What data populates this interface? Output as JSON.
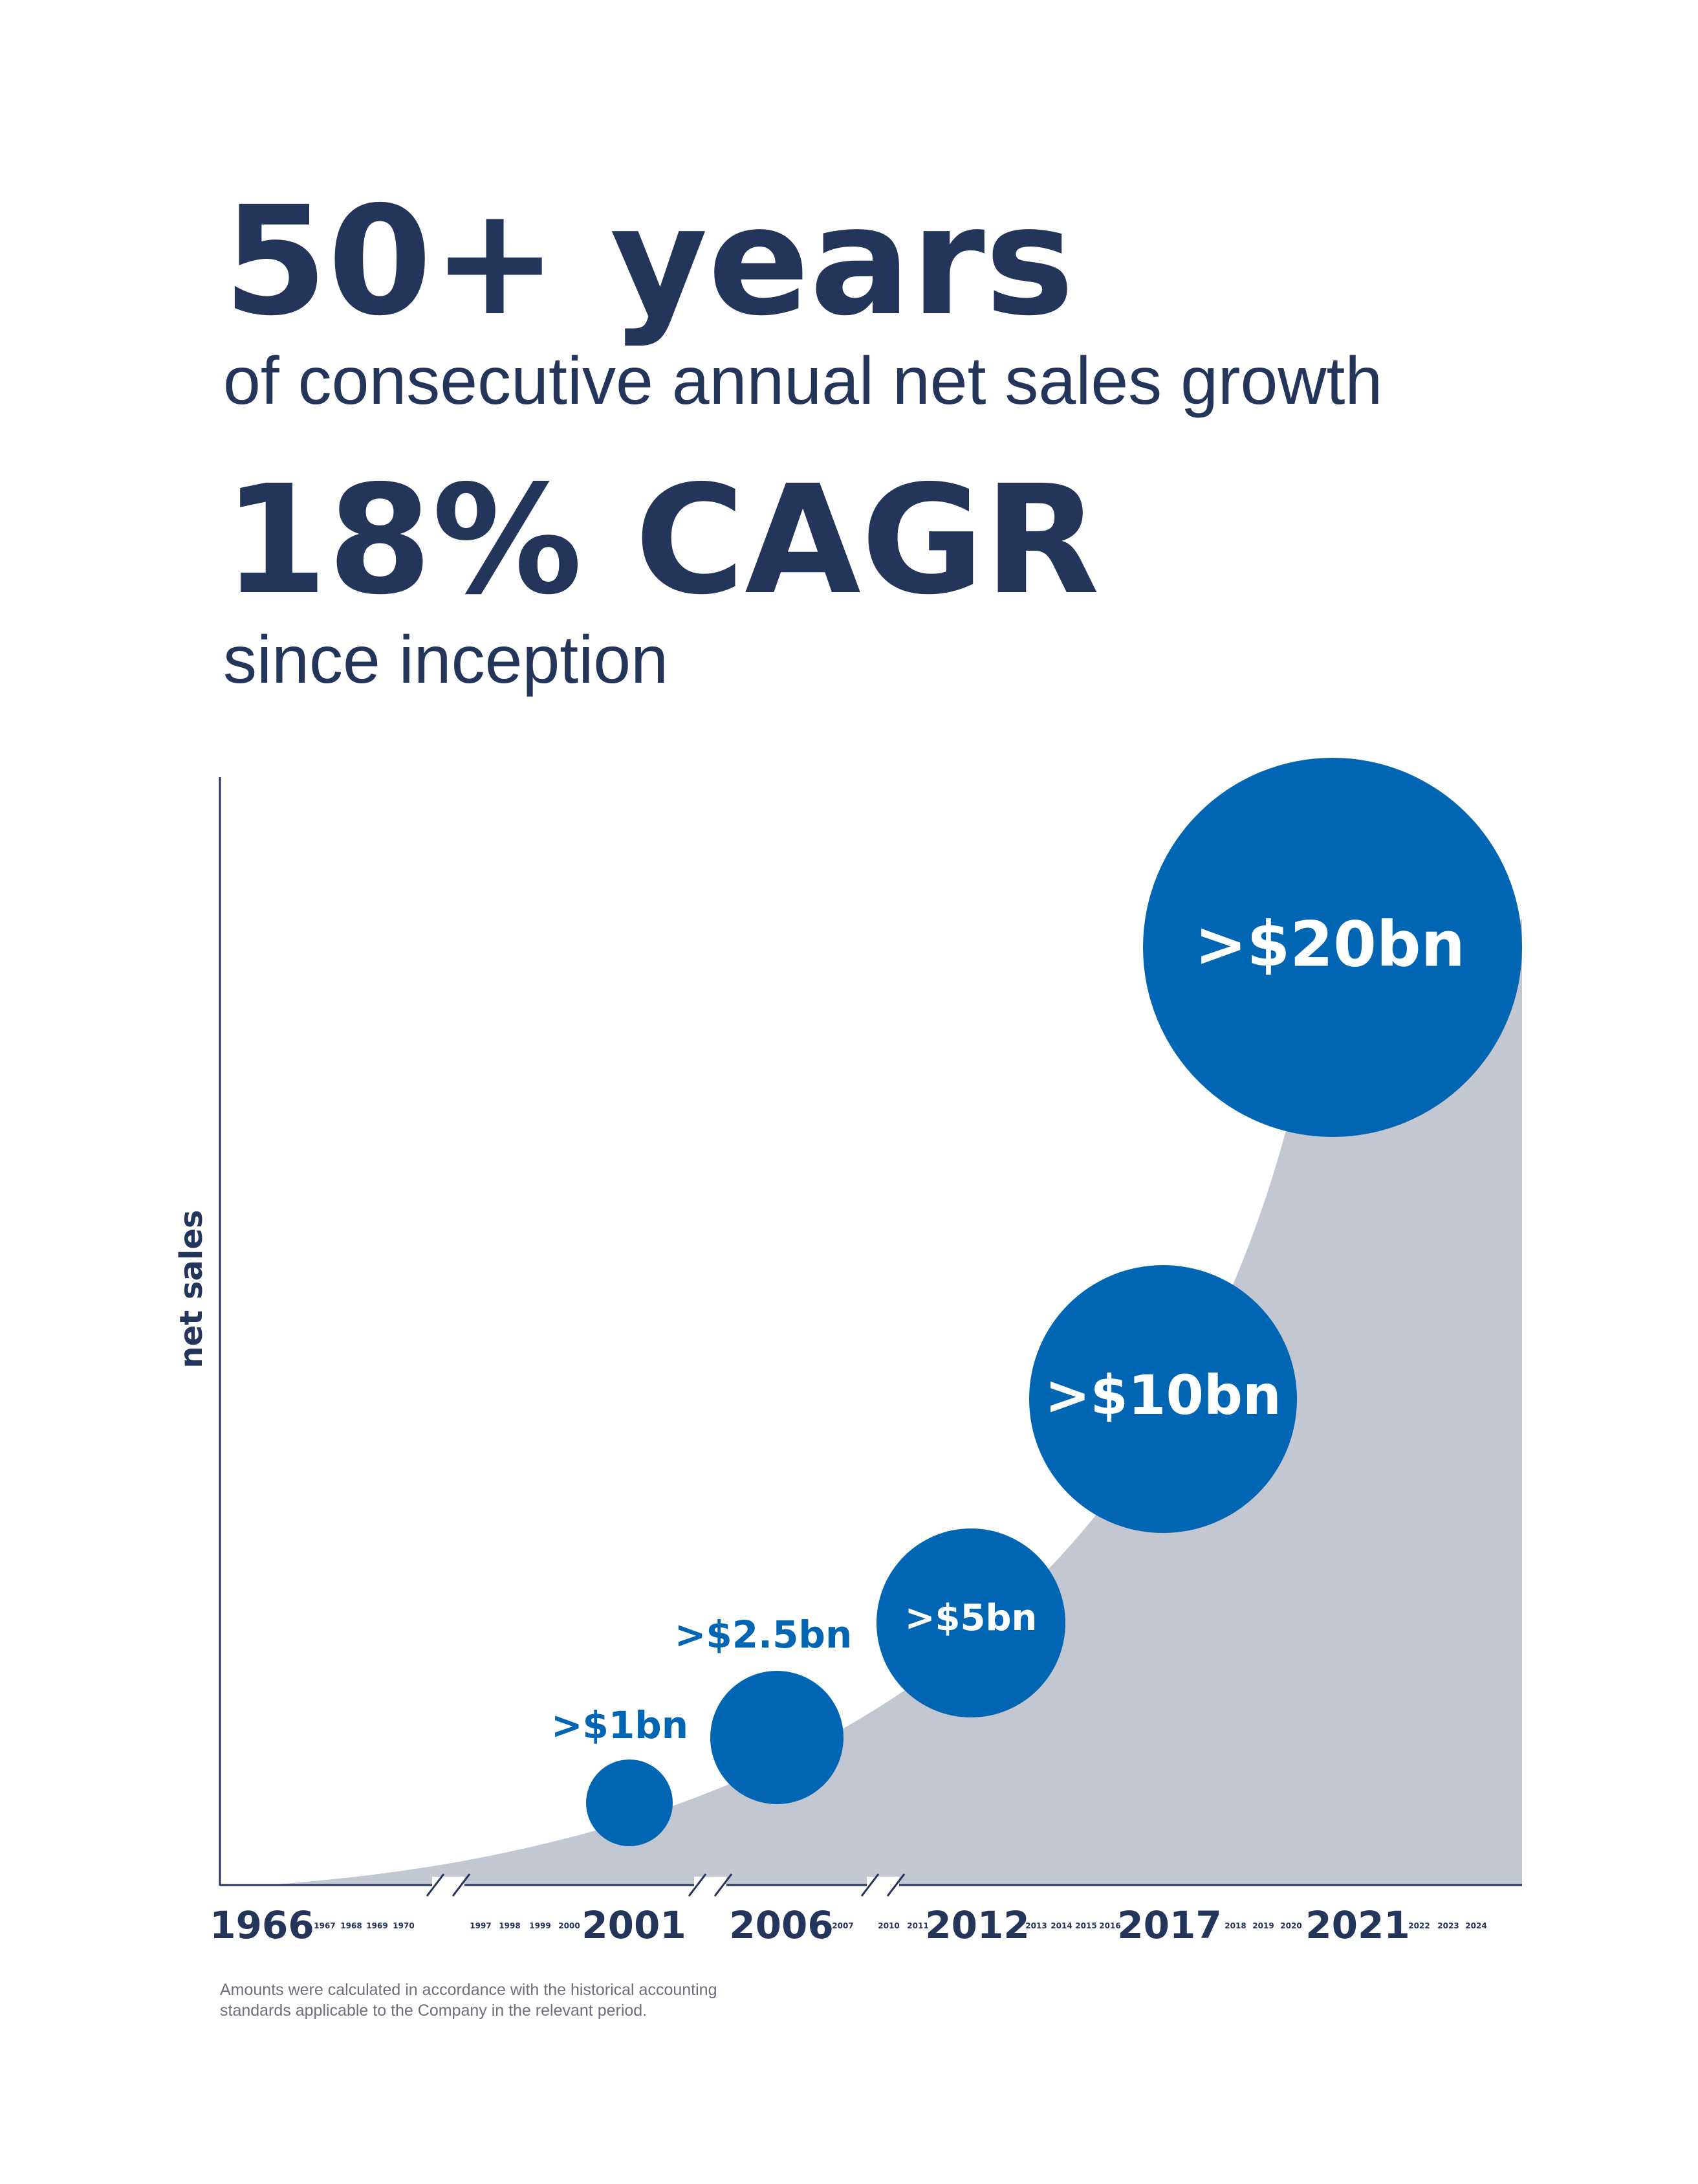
{
  "header": {
    "title": "50+ years",
    "subtitle": "of consecutive annual net sales growth",
    "stat": "18% CAGR",
    "stat_caption": "since inception"
  },
  "chart": {
    "y_label": "net sales",
    "major_years": [
      "1966",
      "2001",
      "2006",
      "2012",
      "2017",
      "2021"
    ],
    "minor_years": [
      "1967",
      "1968",
      "1969",
      "1970",
      "1997",
      "1998",
      "1999",
      "2000",
      "2007",
      "2010",
      "2011",
      "2013",
      "2014",
      "2015",
      "2016",
      "2018",
      "2019",
      "2020",
      "2022",
      "2023",
      "2024"
    ],
    "bubble_labels": [
      ">$1bn",
      ">$2.5bn",
      ">$5bn",
      ">$10bn",
      ">$20bn"
    ]
  },
  "footnote": [
    "Amounts were calculated in accordance with the historical accounting",
    "standards applicable to the Company in the relevant period."
  ]
}
